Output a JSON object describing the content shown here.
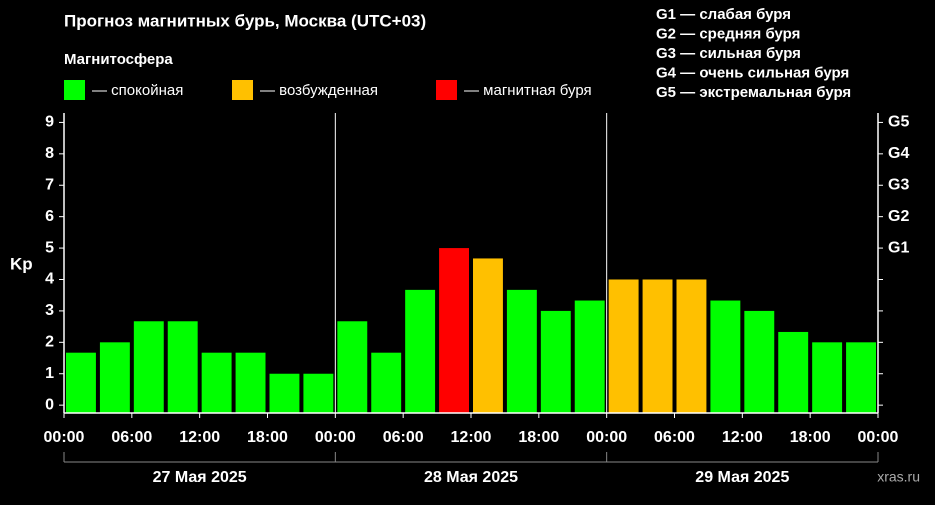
{
  "chart_data": {
    "type": "bar",
    "title": "Прогноз магнитных бурь, Москва (UTC+03)",
    "subtitle": "Магнитосфера",
    "legend": [
      {
        "label": "— спокойная",
        "color": "#00ff00"
      },
      {
        "label": "— возбужденная",
        "color": "#ffc000"
      },
      {
        "label": "— магнитная буря",
        "color": "#ff0000"
      }
    ],
    "g_scale": [
      "G1 — слабая буря",
      "G2 — средняя буря",
      "G3 — сильная буря",
      "G4 — очень сильная буря",
      "G5 — экстремальная буря"
    ],
    "y_label": "Kp",
    "categories": [
      null,
      null,
      null,
      null,
      null,
      null,
      null,
      null,
      null,
      null,
      null,
      null,
      null,
      null,
      null,
      null,
      null,
      null,
      null,
      null,
      null,
      null,
      null,
      null
    ],
    "values": [
      1.67,
      2,
      2.67,
      2.67,
      1.67,
      1.67,
      1,
      1,
      2.67,
      1.67,
      3.67,
      5,
      4.67,
      3.67,
      3,
      3.33,
      4,
      4,
      4,
      3.33,
      3,
      2.33,
      2,
      2
    ],
    "colors": [
      "#00ff00",
      "#00ff00",
      "#00ff00",
      "#00ff00",
      "#00ff00",
      "#00ff00",
      "#00ff00",
      "#00ff00",
      "#00ff00",
      "#00ff00",
      "#00ff00",
      "#ff0000",
      "#ffc000",
      "#00ff00",
      "#00ff00",
      "#00ff00",
      "#ffc000",
      "#ffc000",
      "#ffc000",
      "#00ff00",
      "#00ff00",
      "#00ff00",
      "#00ff00",
      "#00ff00"
    ],
    "x_tick_labels": [
      "00:00",
      "06:00",
      "12:00",
      "18:00",
      "00:00",
      "06:00",
      "12:00",
      "18:00",
      "00:00",
      "06:00",
      "12:00",
      "18:00",
      "00:00"
    ],
    "days": [
      "27 Мая 2025",
      "28 Мая 2025",
      "29 Мая 2025"
    ],
    "ylim": [
      -0.25,
      9.3
    ],
    "yticks": [
      0,
      1,
      2,
      3,
      4,
      5,
      6,
      7,
      8,
      9
    ],
    "y2lim": [
      -0.25,
      9.3
    ],
    "y2ticks": [
      {
        "value": 5,
        "label": "G1"
      },
      {
        "value": 6,
        "label": "G2"
      },
      {
        "value": 7,
        "label": "G3"
      },
      {
        "value": 8,
        "label": "G4"
      },
      {
        "value": 9,
        "label": "G5"
      }
    ],
    "watermark": "xras.ru"
  }
}
